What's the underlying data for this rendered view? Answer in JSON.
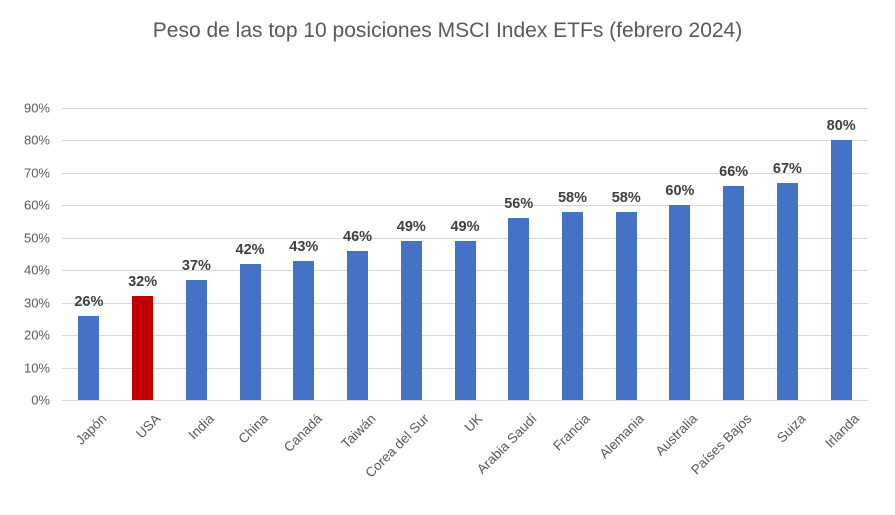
{
  "chart_data": {
    "type": "bar",
    "title": "Peso de las top 10 posiciones MSCI Index ETFs (febrero 2024)",
    "xlabel": "",
    "ylabel": "",
    "categories": [
      "Japón",
      "USA",
      "India",
      "China",
      "Canadá",
      "Taiwán",
      "Corea del Sur",
      "UK",
      "Arabia Saudí",
      "Francia",
      "Alemania",
      "Australia",
      "Países Bajos",
      "Suiza",
      "Irlanda"
    ],
    "values": [
      26,
      32,
      37,
      42,
      43,
      46,
      49,
      49,
      56,
      58,
      58,
      60,
      66,
      67,
      80
    ],
    "data_labels": [
      "26%",
      "32%",
      "37%",
      "42%",
      "43%",
      "46%",
      "49%",
      "49%",
      "56%",
      "58%",
      "58%",
      "60%",
      "66%",
      "67%",
      "80%"
    ],
    "ylim": [
      0,
      90
    ],
    "y_ticks": [
      "0%",
      "10%",
      "20%",
      "30%",
      "40%",
      "50%",
      "60%",
      "70%",
      "80%",
      "90%"
    ],
    "grid": true,
    "legend": "none",
    "bar_color": "#4472C4",
    "highlight_color": "#C00000",
    "highlight_index": 1,
    "gridline_color": "#d9d9d9",
    "title_color": "#595959"
  }
}
